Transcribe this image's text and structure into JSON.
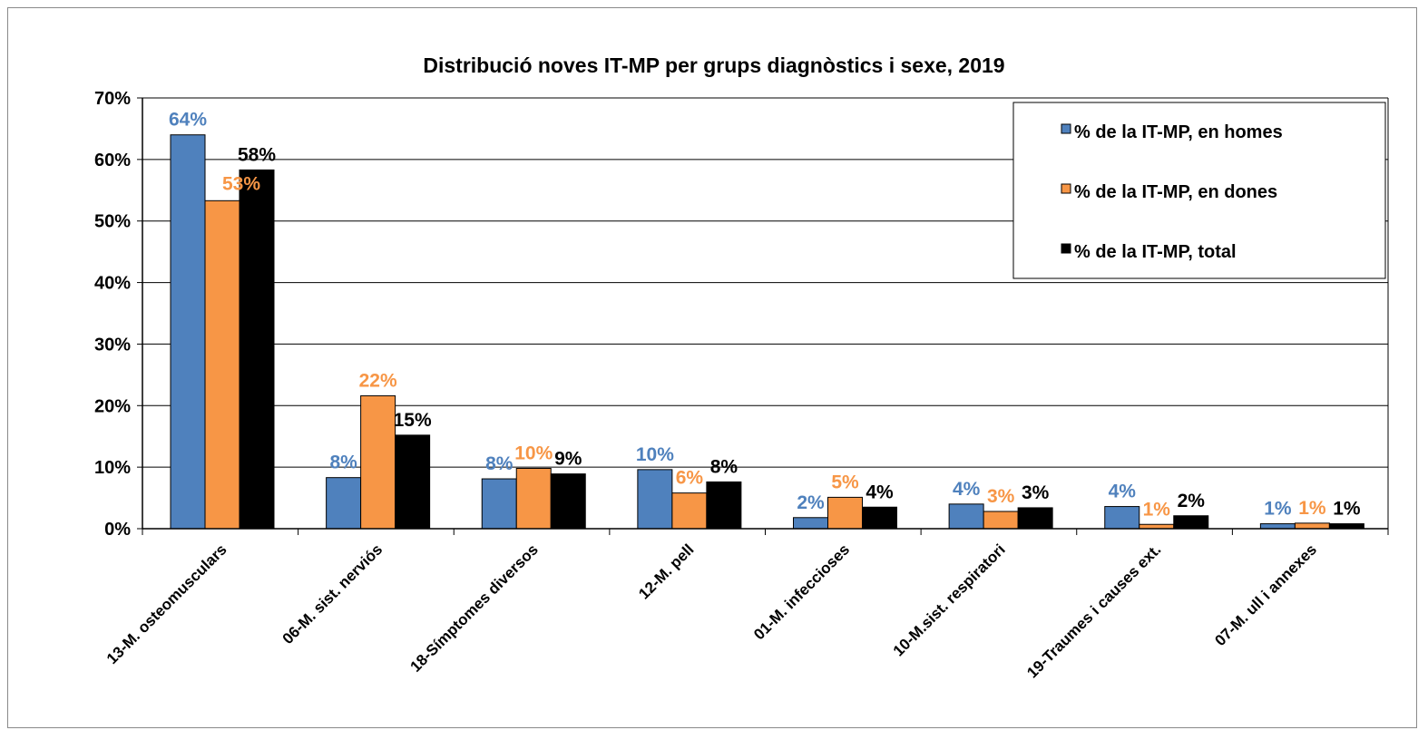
{
  "chart_data": {
    "type": "bar",
    "title": "Distribució noves IT-MP per grups diagnòstics i sexe,  2019",
    "xlabel": "",
    "ylabel": "",
    "ylim": [
      0,
      70
    ],
    "y_ticks": [
      "0%",
      "10%",
      "20%",
      "30%",
      "40%",
      "50%",
      "60%",
      "70%"
    ],
    "grid": true,
    "legend_position": "top-right",
    "categories": [
      "13-M. osteomusculars",
      "06-M. sist. nerviós",
      "18-Símptomes diversos",
      "12-M. pell",
      "01-M. infeccioses",
      "10-M.sist. respiratori",
      "19-Traumes i causes ext.",
      "07-M. ull i annexes"
    ],
    "series": [
      {
        "name": "% de la IT-MP, en homes",
        "color": "#4f81bd",
        "label_color": "#4f81bd",
        "values": [
          64,
          8.3,
          8.1,
          9.6,
          1.8,
          4.0,
          3.6,
          0.8
        ],
        "labels": [
          "64%",
          "8%",
          "8%",
          "10%",
          "2%",
          "4%",
          "4%",
          "1%"
        ]
      },
      {
        "name": "% de la IT-MP, en dones",
        "color": "#f79646",
        "label_color": "#f79646",
        "values": [
          53.3,
          21.6,
          9.8,
          5.8,
          5.1,
          2.8,
          0.7,
          0.9
        ],
        "labels": [
          "53%",
          "22%",
          "10%",
          "6%",
          "5%",
          "3%",
          "1%",
          "1%"
        ]
      },
      {
        "name": "% de la IT-MP, total",
        "color": "#000000",
        "label_color": "#000000",
        "values": [
          58.3,
          15.2,
          8.9,
          7.6,
          3.5,
          3.4,
          2.1,
          0.8
        ],
        "labels": [
          "58%",
          "15%",
          "9%",
          "8%",
          "4%",
          "3%",
          "2%",
          "1%"
        ]
      }
    ]
  }
}
